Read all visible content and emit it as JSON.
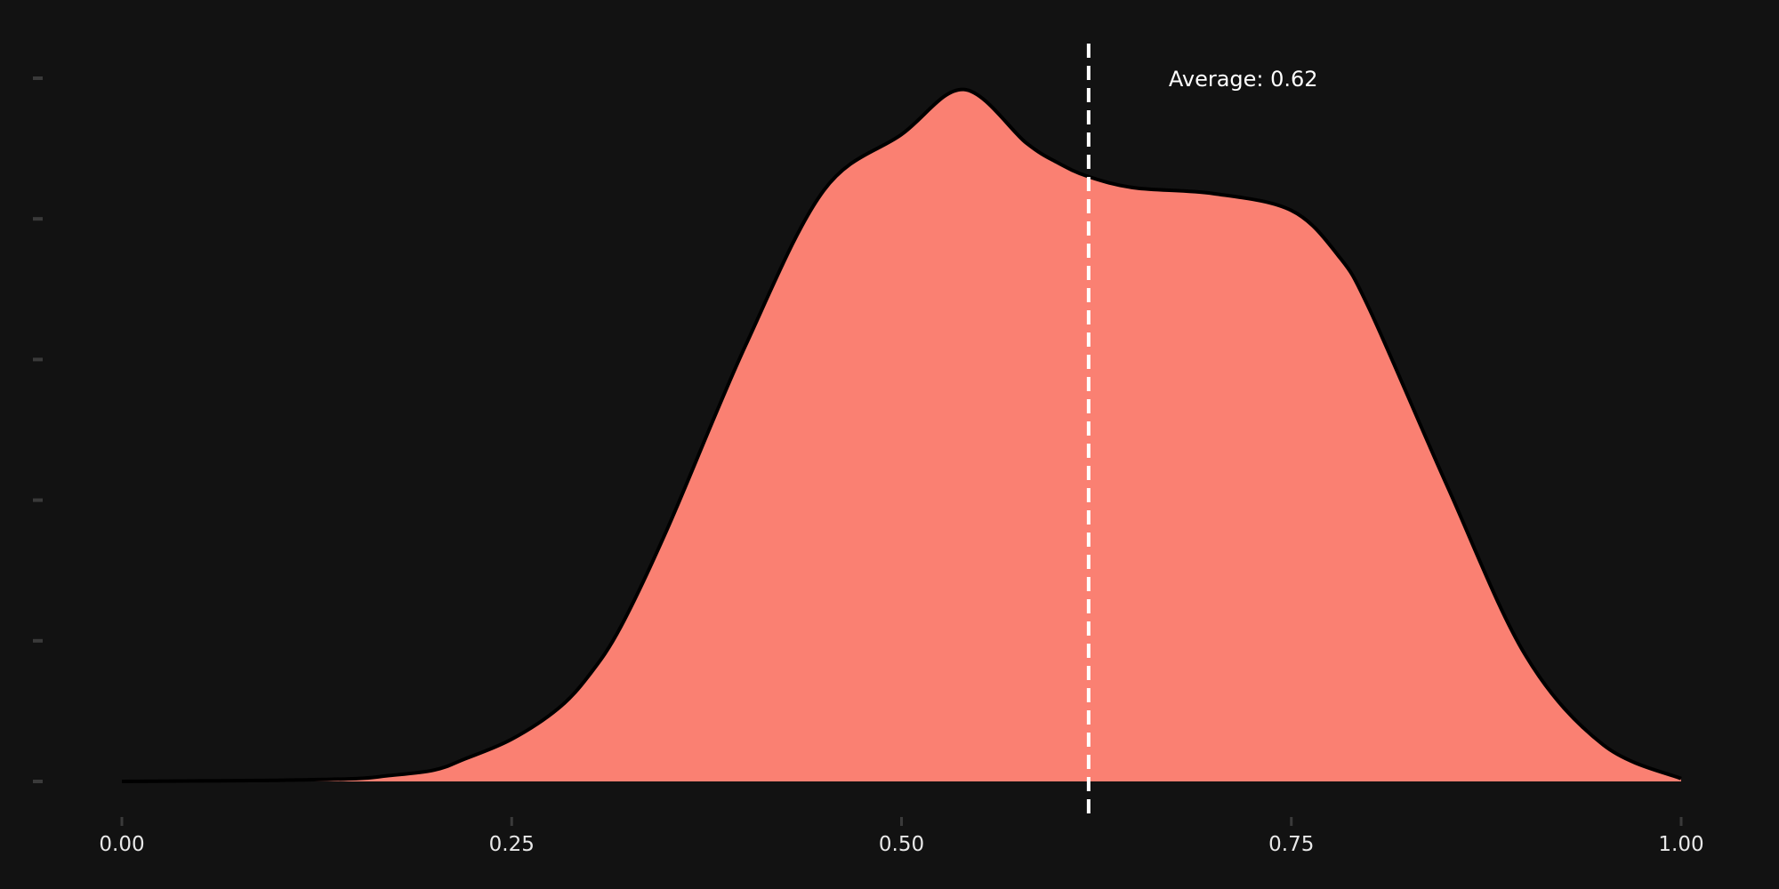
{
  "chart_data": {
    "type": "area",
    "title": "",
    "xlabel": "",
    "ylabel": "",
    "xlim": [
      0.0,
      1.0
    ],
    "ylim": [
      0.0,
      2.5
    ],
    "x_ticks": [
      {
        "value": 0.0,
        "label": "0.00"
      },
      {
        "value": 0.25,
        "label": "0.25"
      },
      {
        "value": 0.5,
        "label": "0.50"
      },
      {
        "value": 0.75,
        "label": "0.75"
      },
      {
        "value": 1.0,
        "label": "1.00"
      }
    ],
    "y_ticks": [
      0.0,
      0.5,
      1.0,
      1.5,
      2.0,
      2.5
    ],
    "grid": false,
    "legend": "none",
    "colors": {
      "background": "#121212",
      "fill": "#fa8072",
      "outline": "#000000",
      "reference_line": "#ffffff",
      "axis_text": "#e8e8e8",
      "axis_ticks": "#3a3a3a"
    },
    "x": [
      0.0,
      0.05,
      0.1,
      0.15,
      0.17,
      0.2,
      0.22,
      0.25,
      0.28,
      0.3,
      0.32,
      0.35,
      0.4,
      0.45,
      0.5,
      0.54,
      0.58,
      0.6,
      0.62,
      0.65,
      0.7,
      0.75,
      0.78,
      0.8,
      0.85,
      0.9,
      0.95,
      1.0
    ],
    "density": [
      0.0,
      0.002,
      0.004,
      0.01,
      0.02,
      0.04,
      0.08,
      0.15,
      0.26,
      0.38,
      0.55,
      0.9,
      1.55,
      2.1,
      2.3,
      2.46,
      2.27,
      2.2,
      2.15,
      2.11,
      2.09,
      2.03,
      1.87,
      1.68,
      1.05,
      0.45,
      0.13,
      0.01
    ],
    "reference_line": {
      "x": 0.62,
      "style": "dashed",
      "label": "Average: 0.62"
    }
  }
}
